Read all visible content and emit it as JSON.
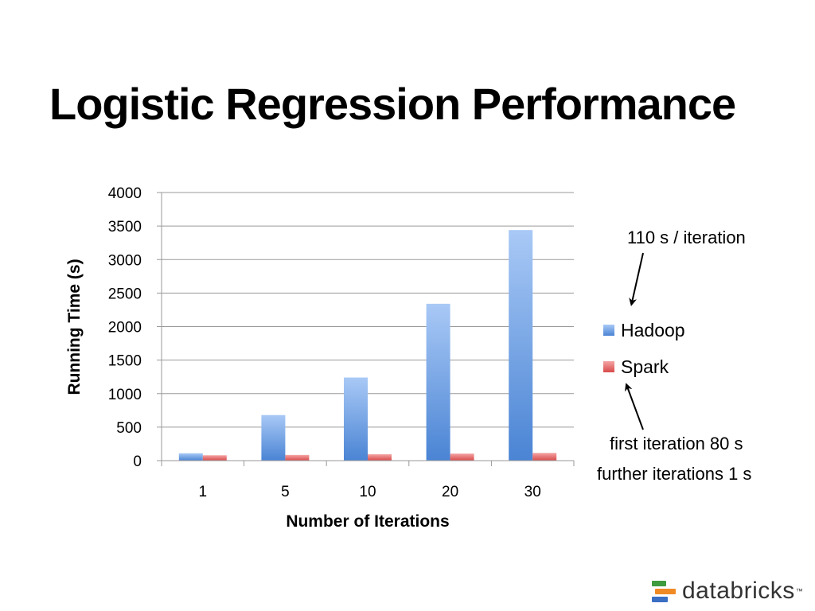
{
  "slide": {
    "title": "Logistic Regression Performance"
  },
  "chart_data": {
    "type": "bar",
    "title": "",
    "xlabel": "Number of Iterations",
    "ylabel": "Running Time (s)",
    "categories": [
      "1",
      "5",
      "10",
      "20",
      "30"
    ],
    "ylim": [
      0,
      4000
    ],
    "yticks": [
      0,
      500,
      1000,
      1500,
      2000,
      2500,
      3000,
      3500,
      4000
    ],
    "grid": true,
    "legend_position": "right",
    "series": [
      {
        "name": "Hadoop",
        "values": [
          110,
          680,
          1240,
          2340,
          3440
        ],
        "color": "#5b8fd9"
      },
      {
        "name": "Spark",
        "values": [
          80,
          85,
          95,
          105,
          115
        ],
        "color": "#e05050"
      }
    ],
    "annotations": [
      {
        "id": "hadoop-note",
        "text": "110 s / iteration"
      },
      {
        "id": "spark-note-1",
        "text": "first iteration 80 s"
      },
      {
        "id": "spark-note-2",
        "text": "further iterations 1 s"
      }
    ]
  },
  "logo": {
    "text": "databricks",
    "tm": "™"
  }
}
